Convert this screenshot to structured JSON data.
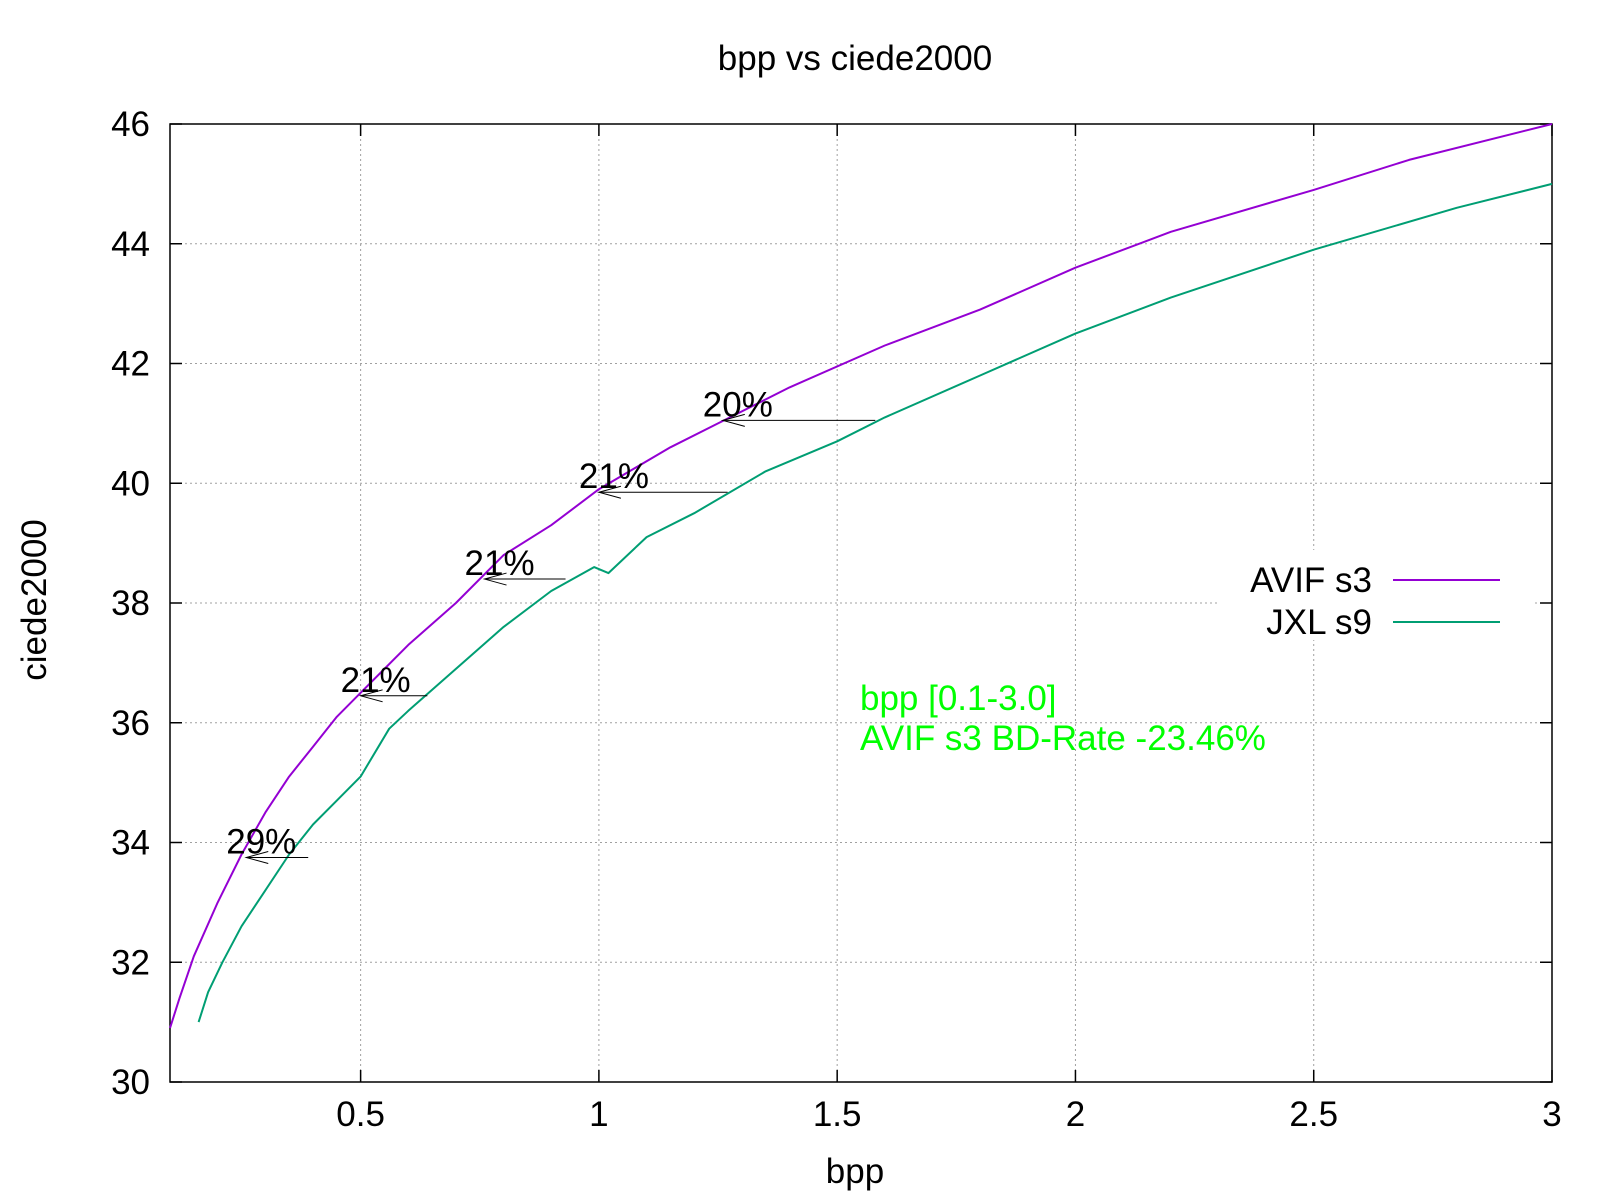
{
  "chart_data": {
    "type": "line",
    "title": "bpp vs ciede2000",
    "xlabel": "bpp",
    "ylabel": "ciede2000",
    "xlim": [
      0.1,
      3
    ],
    "ylim": [
      30,
      46
    ],
    "xticks": [
      0.5,
      1,
      1.5,
      2,
      2.5,
      3
    ],
    "xtick_labels": [
      "0.5",
      "1",
      "1.5",
      "2",
      "2.5",
      "3"
    ],
    "yticks": [
      30,
      32,
      34,
      36,
      38,
      40,
      42,
      44,
      46
    ],
    "ytick_labels": [
      "30",
      "32",
      "34",
      "36",
      "38",
      "40",
      "42",
      "44",
      "46"
    ],
    "grid": true,
    "legend_position": "right",
    "series": [
      {
        "name": "AVIF s3",
        "color": "#9400d3",
        "x": [
          0.1,
          0.12,
          0.15,
          0.2,
          0.25,
          0.3,
          0.35,
          0.4,
          0.45,
          0.5,
          0.6,
          0.7,
          0.8,
          0.9,
          1.0,
          1.15,
          1.25,
          1.4,
          1.6,
          1.8,
          2.0,
          2.2,
          2.5,
          2.7,
          3.0
        ],
        "values": [
          30.9,
          31.4,
          32.1,
          33.0,
          33.8,
          34.5,
          35.1,
          35.6,
          36.1,
          36.5,
          37.3,
          38.0,
          38.8,
          39.3,
          39.9,
          40.6,
          41.0,
          41.6,
          42.3,
          42.9,
          43.6,
          44.2,
          44.9,
          45.4,
          46.0
        ]
      },
      {
        "name": "JXL s9",
        "color": "#009e73",
        "x": [
          0.16,
          0.18,
          0.21,
          0.25,
          0.3,
          0.35,
          0.4,
          0.45,
          0.5,
          0.56,
          0.6,
          0.7,
          0.8,
          0.9,
          0.99,
          1.02,
          1.1,
          1.2,
          1.35,
          1.5,
          1.6,
          1.8,
          2.0,
          2.2,
          2.5,
          2.8,
          3.0
        ],
        "values": [
          31.0,
          31.5,
          32.0,
          32.6,
          33.2,
          33.8,
          34.3,
          34.7,
          35.1,
          35.9,
          36.2,
          36.9,
          37.6,
          38.2,
          38.6,
          38.5,
          39.1,
          39.5,
          40.2,
          40.7,
          41.1,
          41.8,
          42.5,
          43.1,
          43.9,
          44.6,
          45.0
        ]
      }
    ],
    "annotations": [
      {
        "text": "29%",
        "y": 33.75,
        "x_from": 0.39,
        "x_to": 0.26
      },
      {
        "text": "21%",
        "y": 36.45,
        "x_from": 0.64,
        "x_to": 0.5
      },
      {
        "text": "21%",
        "y": 38.4,
        "x_from": 0.93,
        "x_to": 0.76
      },
      {
        "text": "21%",
        "y": 39.85,
        "x_from": 1.27,
        "x_to": 1.0
      },
      {
        "text": "20%",
        "y": 41.05,
        "x_from": 1.58,
        "x_to": 1.26
      }
    ],
    "info_box": {
      "color": "#00ff00",
      "lines": [
        "bpp [0.1-3.0]",
        "AVIF s3 BD-Rate -23.46%"
      ]
    }
  }
}
